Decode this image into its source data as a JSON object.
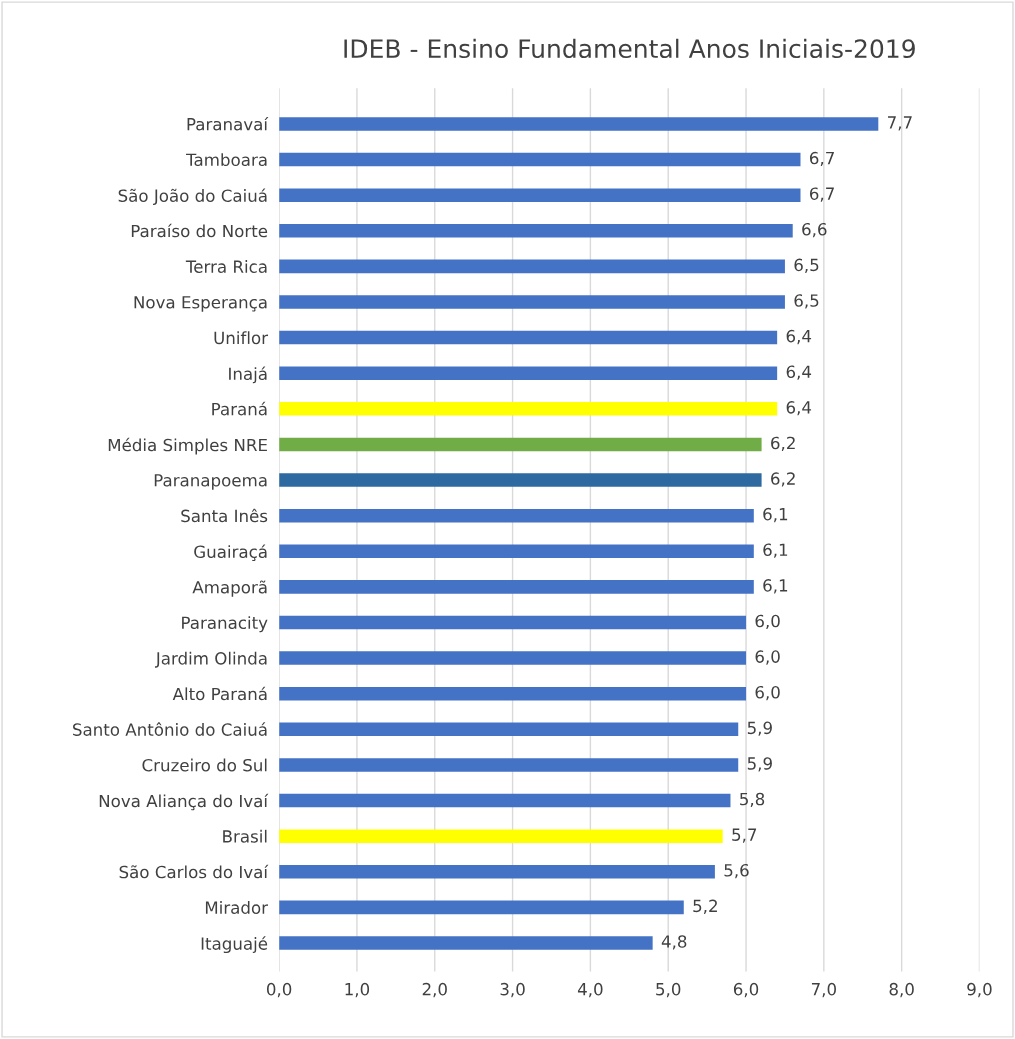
{
  "chart_data": {
    "type": "bar",
    "orientation": "horizontal",
    "title": "IDEB - Ensino Fundamental Anos Iniciais-2019",
    "categories": [
      "Paranavaí",
      "Tamboara",
      "São João do Caiuá",
      "Paraíso do Norte",
      "Terra Rica",
      "Nova Esperança",
      "Uniflor",
      "Inajá",
      "Paraná",
      "Média Simples NRE",
      "Paranapoema",
      "Santa Inês",
      "Guairaçá",
      "Amaporã",
      "Paranacity",
      "Jardim Olinda",
      "Alto Paraná",
      "Santo Antônio do Caiuá",
      "Cruzeiro do Sul",
      "Nova Aliança do Ivaí",
      "Brasil",
      "São Carlos do Ivaí",
      "Mirador",
      "Itaguajé"
    ],
    "values": [
      7.7,
      6.7,
      6.7,
      6.6,
      6.5,
      6.5,
      6.4,
      6.4,
      6.4,
      6.2,
      6.2,
      6.1,
      6.1,
      6.1,
      6.0,
      6.0,
      6.0,
      5.9,
      5.9,
      5.8,
      5.7,
      5.6,
      5.2,
      4.8
    ],
    "value_labels": [
      "7,7",
      "6,7",
      "6,7",
      "6,6",
      "6,5",
      "6,5",
      "6,4",
      "6,4",
      "6,4",
      "6,2",
      "6,2",
      "6,1",
      "6,1",
      "6,1",
      "6,0",
      "6,0",
      "6,0",
      "5,9",
      "5,9",
      "5,8",
      "5,7",
      "5,6",
      "5,2",
      "4,8"
    ],
    "colors": [
      "#4472c4",
      "#4472c4",
      "#4472c4",
      "#4472c4",
      "#4472c4",
      "#4472c4",
      "#4472c4",
      "#4472c4",
      "#ffff00",
      "#70ad47",
      "#2e6aa0",
      "#4472c4",
      "#4472c4",
      "#4472c4",
      "#4472c4",
      "#4472c4",
      "#4472c4",
      "#4472c4",
      "#4472c4",
      "#4472c4",
      "#ffff00",
      "#4472c4",
      "#4472c4",
      "#4472c4"
    ],
    "xlim": [
      0,
      9
    ],
    "xticks": [
      {
        "value": 0,
        "label": "0,0"
      },
      {
        "value": 1,
        "label": "1,0"
      },
      {
        "value": 2,
        "label": "2,0"
      },
      {
        "value": 3,
        "label": "3,0"
      },
      {
        "value": 4,
        "label": "4,0"
      },
      {
        "value": 5,
        "label": "5,0"
      },
      {
        "value": 6,
        "label": "6,0"
      },
      {
        "value": 7,
        "label": "7,0"
      },
      {
        "value": 8,
        "label": "8,0"
      },
      {
        "value": 9,
        "label": "9,0"
      }
    ],
    "grid": "x",
    "legend": false
  }
}
